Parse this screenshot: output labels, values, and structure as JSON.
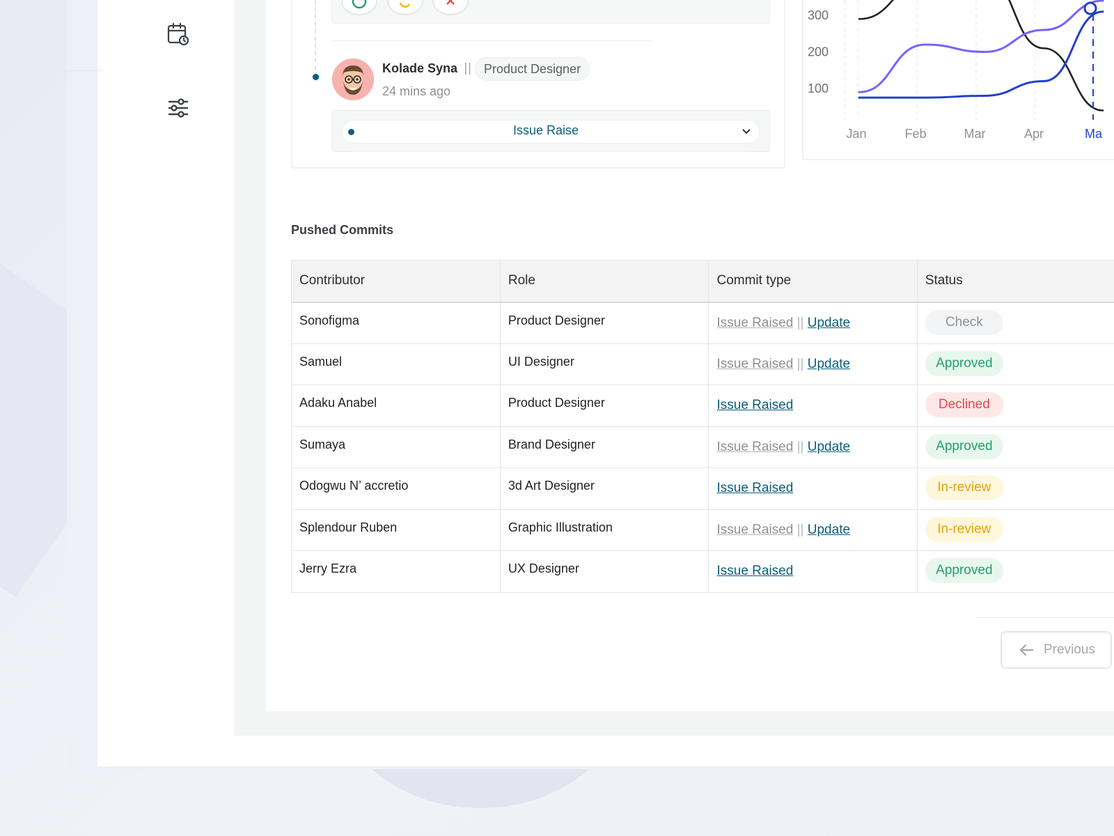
{
  "sidebar": {
    "icons": [
      {
        "name": "calendar-clock-icon"
      },
      {
        "name": "sliders-icon"
      }
    ]
  },
  "activity": {
    "actions": [
      {
        "name": "approve-icon",
        "color": "#22a06b"
      },
      {
        "name": "refresh-icon",
        "color": "#f5b100"
      },
      {
        "name": "close-icon",
        "color": "#e5484d"
      }
    ],
    "person_name": "Kolade Syna",
    "separator": "||",
    "role": "Product Designer",
    "time_ago": "24 mins ago",
    "issue_select_value": "Issue Raise"
  },
  "chart_data": {
    "type": "line",
    "categories": [
      "Jan",
      "Feb",
      "Mar",
      "Apr",
      "Ma"
    ],
    "yticks": [
      100,
      200,
      300
    ],
    "ylim": [
      0,
      350
    ],
    "series": [
      {
        "color": "#1f2328",
        "values": [
          290,
          390,
          410,
          210,
          40
        ]
      },
      {
        "color": "#7b61ff",
        "values": [
          90,
          220,
          200,
          260,
          340
        ]
      },
      {
        "color": "#2340c8",
        "values": [
          75,
          75,
          80,
          120,
          310
        ]
      }
    ]
  },
  "commits": {
    "title": "Pushed Commits",
    "columns": [
      "Contributor",
      "Role",
      "Commit type",
      "Status"
    ],
    "rows": [
      {
        "contributor": "Sonofigma",
        "role": "Product Designer",
        "raised": "Issue Raised",
        "update": "Update",
        "status": "Check"
      },
      {
        "contributor": "Samuel",
        "role": "UI Designer",
        "raised": "Issue Raised",
        "update": "Update",
        "status": "Approved"
      },
      {
        "contributor": "Adaku Anabel",
        "role": "Product Designer",
        "raised": "Issue Raised",
        "update": null,
        "status": "Declined"
      },
      {
        "contributor": "Sumaya",
        "role": "Brand Designer",
        "raised": "Issue Raised",
        "update": "Update",
        "status": "Approved"
      },
      {
        "contributor": "Odogwu N’ accretio",
        "role": "3d Art Designer",
        "raised": "Issue Raised",
        "update": null,
        "status": "In-review"
      },
      {
        "contributor": "Splendour Ruben",
        "role": "Graphic Illustration",
        "raised": "Issue Raised",
        "update": "Update",
        "status": "In-review"
      },
      {
        "contributor": "Jerry Ezra",
        "role": "UX Designer",
        "raised": "Issue Raised",
        "update": null,
        "status": "Approved"
      }
    ],
    "pipe": "||",
    "status_colors": {
      "Check": {
        "bg": "#f3f4f5",
        "fg": "#8d9196"
      },
      "Approved": {
        "bg": "#e8f7ee",
        "fg": "#22a06b"
      },
      "Declined": {
        "bg": "#fde7e7",
        "fg": "#e5484d"
      },
      "In-review": {
        "bg": "#fff6dc",
        "fg": "#e8a400"
      }
    }
  },
  "pagination": {
    "previous_label": "Previous"
  }
}
